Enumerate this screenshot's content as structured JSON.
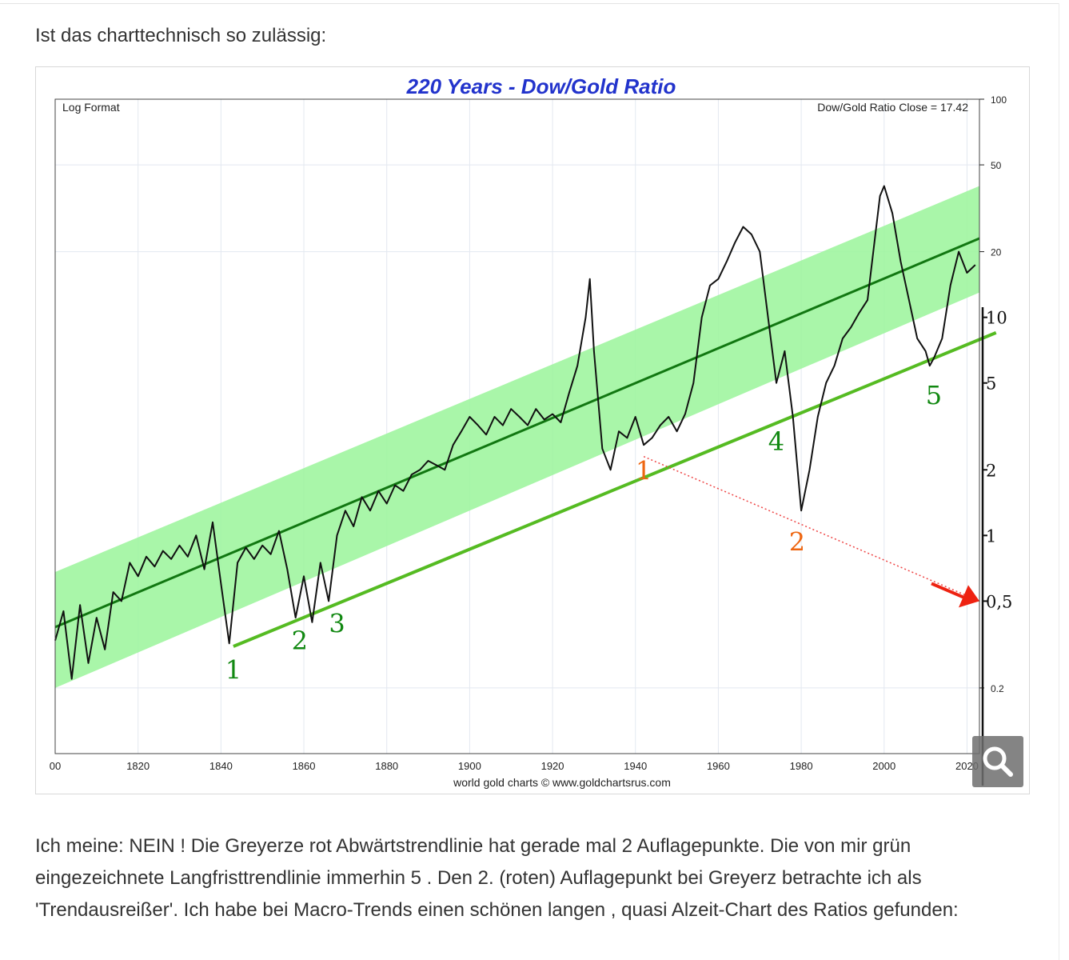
{
  "post": {
    "intro": "Ist das charttechnisch so zulässig:",
    "body": "Ich meine: NEIN ! Die Greyerze rot Abwärtstrendlinie hat gerade mal 2 Auflagepunkte. Die von mir grün eingezeichnete Langfristtrendlinie immerhin 5 . Den 2. (roten) Auflagepunkt bei Greyerz betrachte ich als 'Trendausreißer'. Ich habe bei Macro-Trends einen schönen langen , quasi Alzeit-Chart des Ratios gefunden:"
  },
  "zoom": {
    "icon": "magnifier-icon"
  },
  "chart_data": {
    "type": "line",
    "title": "220 Years - Dow/Gold Ratio",
    "subtitle_left": "Log Format",
    "subtitle_right": "Dow/Gold Ratio Close = 17.42",
    "credit": "world gold charts © www.goldchartsrus.com",
    "x_ticks": [
      "00",
      "1820",
      "1840",
      "1860",
      "1880",
      "1900",
      "1920",
      "1940",
      "1960",
      "1980",
      "2000",
      "2020"
    ],
    "xlim": [
      1800,
      2023
    ],
    "ylim": [
      0.1,
      100
    ],
    "y_scale": "log",
    "y_ticks_printed": [
      {
        "value": 100,
        "label": "100"
      },
      {
        "value": 50,
        "label": "50"
      },
      {
        "value": 20,
        "label": "20"
      },
      {
        "value": 0.2,
        "label": "0.2"
      }
    ],
    "y_ticks_handwritten": [
      {
        "value": 10,
        "label": "10"
      },
      {
        "value": 5,
        "label": "5"
      },
      {
        "value": 2,
        "label": "2"
      },
      {
        "value": 1,
        "label": "1"
      },
      {
        "value": 0.5,
        "label": "0,5"
      }
    ],
    "series": [
      {
        "x": [
          1800,
          1802,
          1804,
          1806,
          1808,
          1810,
          1812,
          1814,
          1816,
          1818,
          1820,
          1822,
          1824,
          1826,
          1828,
          1830,
          1832,
          1834,
          1836,
          1838,
          1840,
          1842,
          1844,
          1846,
          1848,
          1850,
          1852,
          1854,
          1856,
          1858,
          1860,
          1862,
          1864,
          1866,
          1868,
          1870,
          1872,
          1874,
          1876,
          1878,
          1880,
          1882,
          1884,
          1886,
          1888,
          1890,
          1892,
          1894,
          1896,
          1898,
          1900,
          1902,
          1904,
          1906,
          1908,
          1910,
          1912,
          1914,
          1916,
          1918,
          1920,
          1922,
          1924,
          1926,
          1928,
          1929,
          1930,
          1932,
          1934,
          1936,
          1938,
          1940,
          1942,
          1944,
          1946,
          1948,
          1950,
          1952,
          1954,
          1956,
          1958,
          1960,
          1962,
          1964,
          1966,
          1968,
          1970,
          1972,
          1974,
          1976,
          1978,
          1980,
          1982,
          1984,
          1986,
          1988,
          1990,
          1992,
          1994,
          1996,
          1998,
          1999,
          2000,
          2002,
          2004,
          2006,
          2008,
          2010,
          2011,
          2012,
          2014,
          2016,
          2018,
          2020,
          2022
        ],
        "values": [
          0.33,
          0.45,
          0.22,
          0.48,
          0.26,
          0.42,
          0.3,
          0.55,
          0.5,
          0.75,
          0.65,
          0.8,
          0.72,
          0.85,
          0.78,
          0.9,
          0.8,
          1.0,
          0.7,
          1.15,
          0.6,
          0.32,
          0.75,
          0.88,
          0.78,
          0.9,
          0.82,
          1.05,
          0.7,
          0.42,
          0.65,
          0.4,
          0.75,
          0.5,
          1.0,
          1.3,
          1.1,
          1.5,
          1.3,
          1.6,
          1.4,
          1.7,
          1.6,
          1.9,
          2.0,
          2.2,
          2.1,
          2.0,
          2.6,
          3.0,
          3.5,
          3.2,
          2.9,
          3.5,
          3.2,
          3.8,
          3.5,
          3.2,
          3.8,
          3.4,
          3.6,
          3.3,
          4.5,
          6.0,
          10.0,
          15.0,
          7.0,
          2.5,
          2.0,
          3.0,
          2.8,
          3.5,
          2.6,
          2.8,
          3.2,
          3.5,
          3.0,
          3.6,
          5.0,
          10.0,
          14.0,
          15.0,
          18.0,
          22.0,
          26.0,
          24.0,
          20.0,
          10.0,
          5.0,
          7.0,
          3.5,
          1.3,
          2.0,
          3.5,
          5.0,
          6.0,
          8.0,
          9.0,
          10.5,
          12.0,
          25.0,
          36.0,
          40.0,
          30.0,
          18.0,
          12.0,
          8.0,
          7.0,
          6.0,
          6.5,
          8.0,
          14.0,
          20.0,
          16.0,
          17.4
        ]
      }
    ],
    "annotations": {
      "trend_center": {
        "x": [
          1800,
          2023
        ],
        "y": [
          0.38,
          23
        ]
      },
      "trend_band": {
        "x": [
          1800,
          2023
        ],
        "upper": [
          0.68,
          40
        ],
        "lower": [
          0.2,
          13
        ]
      },
      "green_support_line": {
        "x": [
          1843,
          2027
        ],
        "y": [
          0.31,
          8.5
        ]
      },
      "red_downtrend_line": {
        "x": [
          1942,
          2023
        ],
        "y": [
          2.3,
          0.5
        ]
      },
      "green_labels": [
        {
          "text": "1",
          "x": 1843,
          "y": 0.22
        },
        {
          "text": "2",
          "x": 1859,
          "y": 0.3
        },
        {
          "text": "3",
          "x": 1868,
          "y": 0.36
        },
        {
          "text": "4",
          "x": 1974,
          "y": 2.45
        },
        {
          "text": "5",
          "x": 2012,
          "y": 4.0
        }
      ],
      "red_labels": [
        {
          "text": "1",
          "x": 1942,
          "y": 1.8
        },
        {
          "text": "2",
          "x": 1979,
          "y": 0.85
        }
      ]
    },
    "colors": {
      "title": "#2233cc",
      "band": "#9af59a",
      "trend_center": "#117711",
      "support_line": "#55bb22",
      "downtrend_line": "#ee4444",
      "arrow": "#ee2211",
      "label_green": "#118811",
      "label_red": "#ee6611",
      "price": "#111111"
    },
    "grid": true,
    "legend": "none"
  }
}
